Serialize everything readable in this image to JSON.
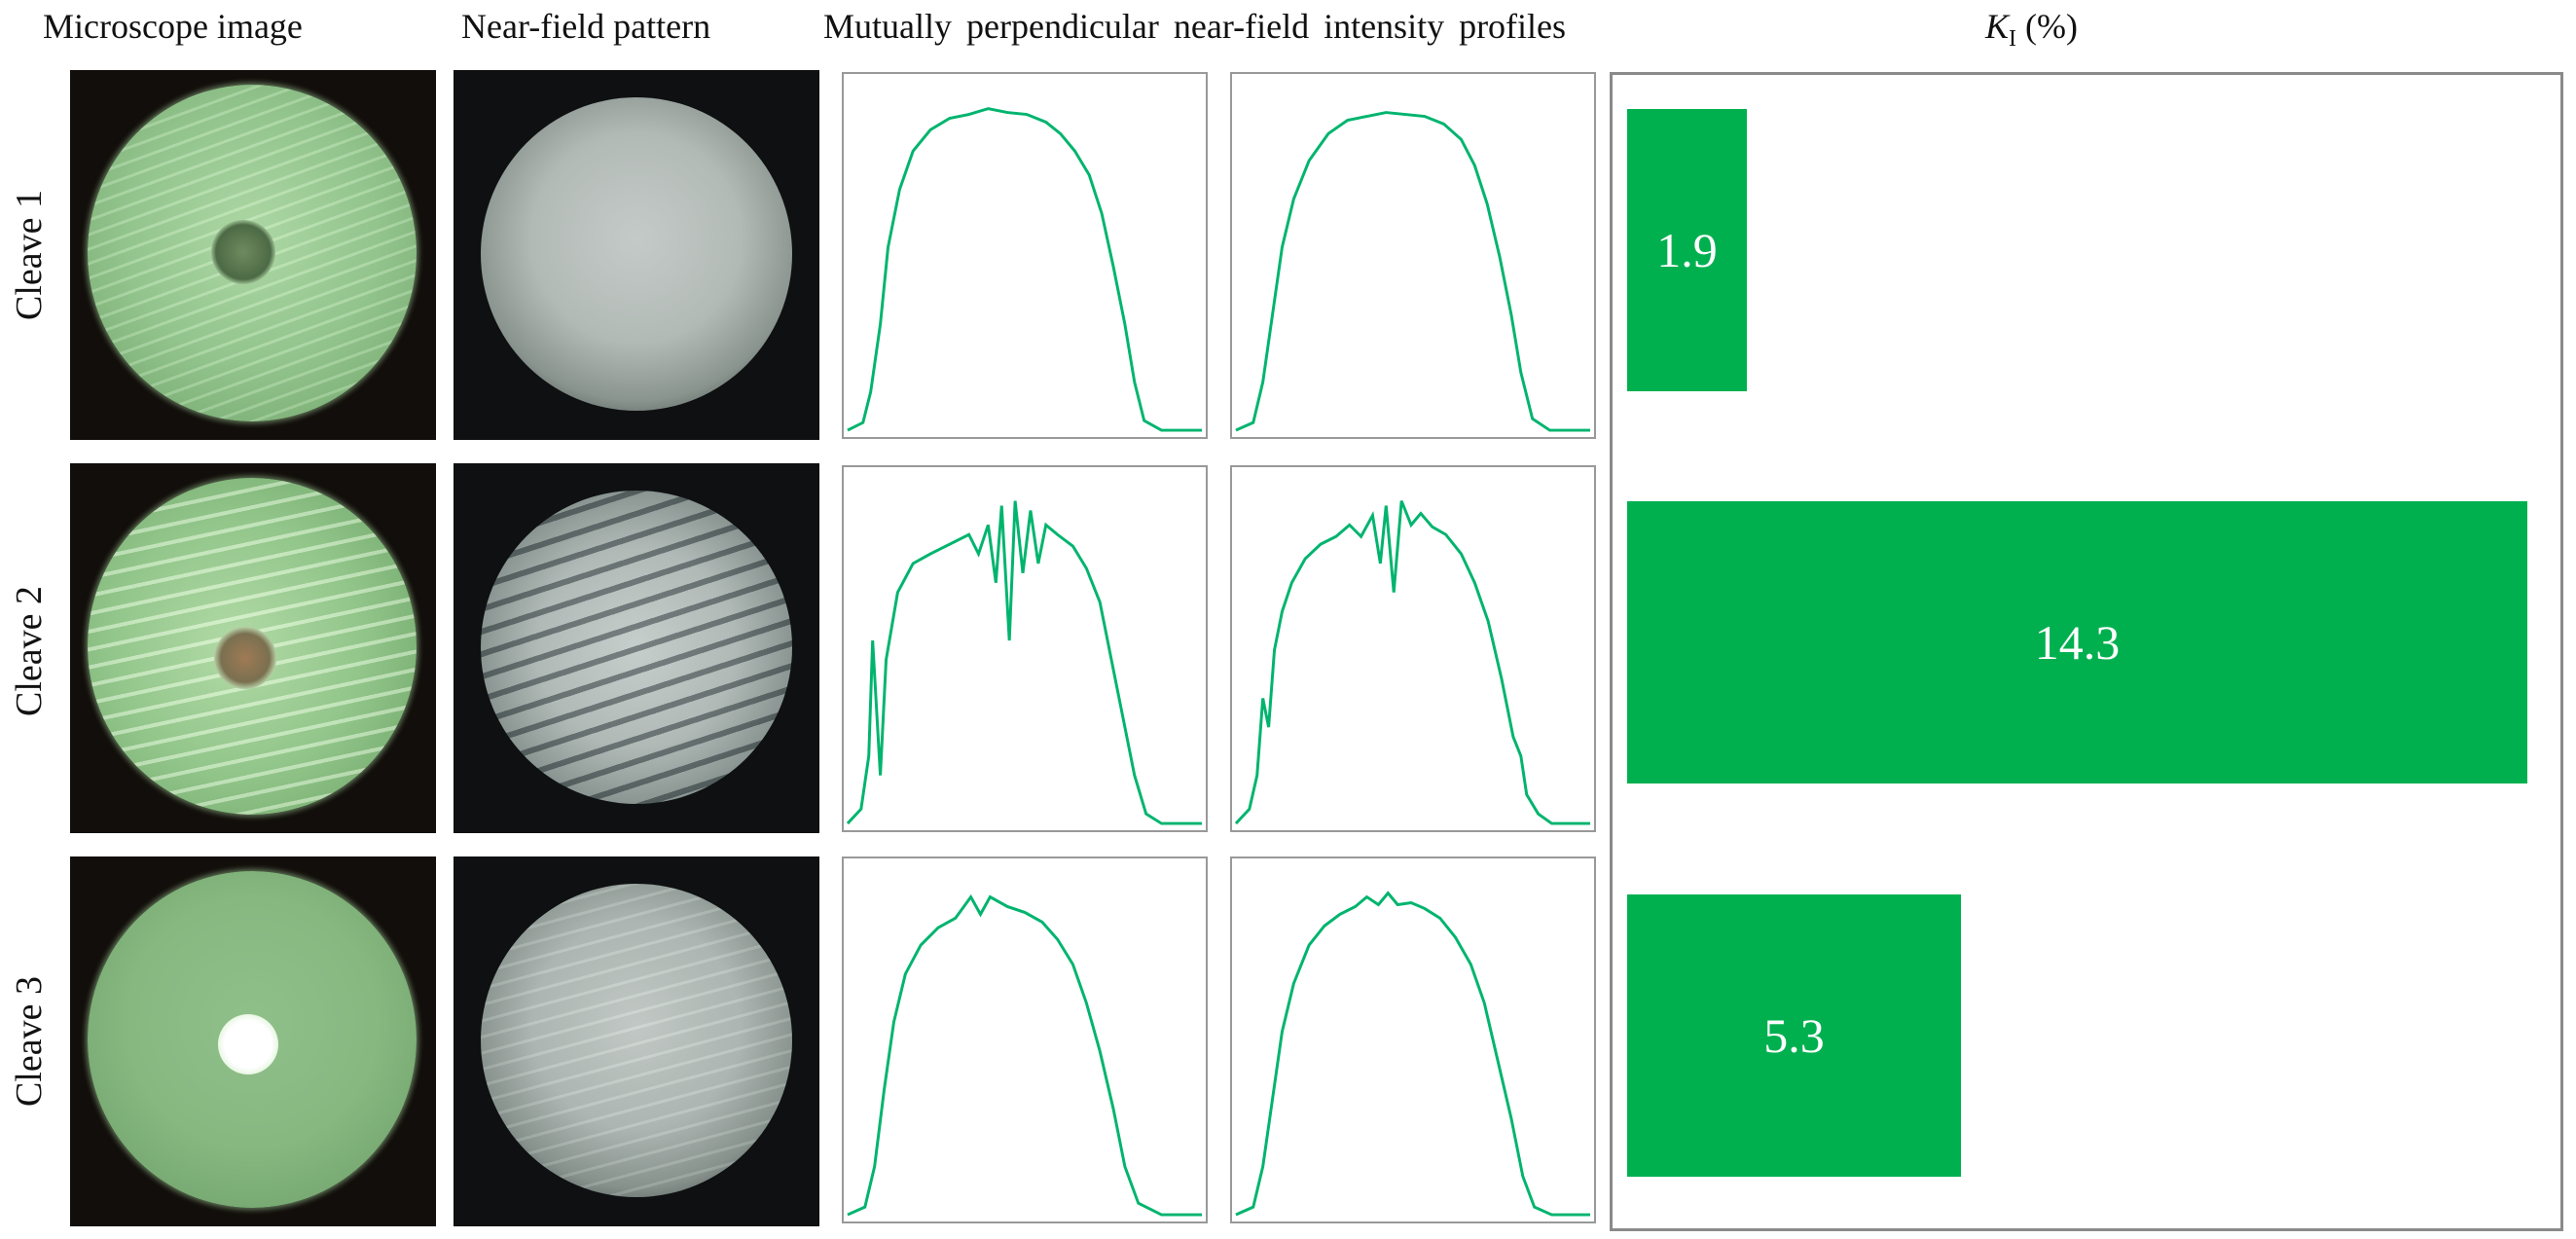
{
  "headers": {
    "microscope": "Microscope image",
    "near_field": "Near-field pattern",
    "profiles": "Mutually perpendicular near-field intensity profiles",
    "k_symbol": "K",
    "k_sub": "I",
    "k_unit": "(%)"
  },
  "rows": [
    {
      "label": "Cleave 1",
      "k_value": "1.9"
    },
    {
      "label": "Cleave 2",
      "k_value": "14.3"
    },
    {
      "label": "Cleave 3",
      "k_value": "5.3"
    }
  ],
  "chart_data": {
    "type": "bar",
    "orientation": "horizontal",
    "categories": [
      "Cleave 1",
      "Cleave 2",
      "Cleave 3"
    ],
    "values": [
      1.9,
      14.3,
      5.3
    ],
    "xlabel": "K_I (%)",
    "xlim": [
      0,
      14.3
    ],
    "bar_color": "#00b04f",
    "label_color": "#ffffff"
  },
  "colors": {
    "profile_line": "#00b46e",
    "plot_border": "#999999",
    "panel_border": "#8a8a8a"
  }
}
